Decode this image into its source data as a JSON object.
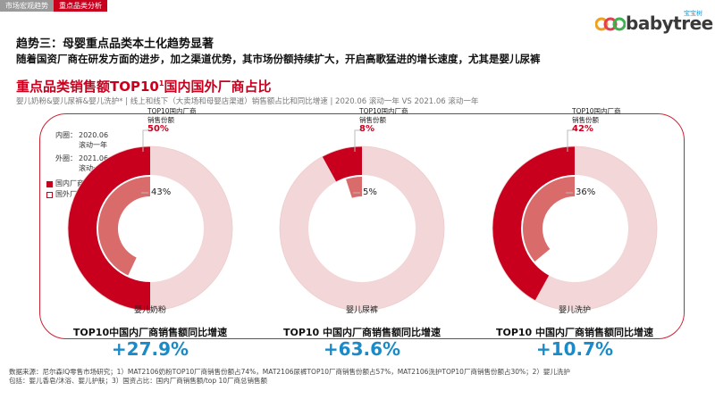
{
  "tabs": [
    {
      "label": "市场宏观趋势",
      "active": false
    },
    {
      "label": "重点品类分析",
      "active": true
    }
  ],
  "logo": {
    "text": "babytree",
    "small": "宝宝树"
  },
  "trend_title": "趋势三：母婴重点品类本土化趋势显著",
  "trend_desc": "随着国资厂商在研发方面的进步，加之渠道优势，其市场份额持续扩大，开启高歌猛进的增长速度，尤其是婴儿尿裤",
  "section_title": "重点品类销售额TOP10",
  "section_title_sup": "1",
  "section_title_rest": "国内国外厂商占比",
  "section_sub": "婴儿奶粉&婴儿尿裤&婴儿洗护* | 线上和线下（大卖场和母婴店渠道）销售额占比和同比增速 | 2020.06 滚动一年 VS 2021.06 滚动一年",
  "legend": {
    "inner_label": "内圈：",
    "inner_period": "2020.06",
    "inner_suffix": "滚动一年",
    "outer_label": "外圈：",
    "outer_period": "2021.06",
    "outer_suffix": "滚动一年",
    "domestic": "国内厂商",
    "foreign": "国外厂商"
  },
  "callout_label": "TOP10国内厂商\n销售份额",
  "chart_data": [
    {
      "type": "pie",
      "category": "婴儿奶粉",
      "inner_domestic_pct": 43,
      "outer_domestic_pct": 50,
      "inner_label": "43%",
      "outer_label": "50%",
      "growth_title": "TOP10中国内厂商销售额同比增速",
      "growth": "+27.9%"
    },
    {
      "type": "pie",
      "category": "婴儿尿裤",
      "inner_domestic_pct": 5,
      "outer_domestic_pct": 8,
      "inner_label": "5%",
      "outer_label": "8%",
      "growth_title": "TOP10 中国内厂商销售额同比增速",
      "growth": "+63.6%"
    },
    {
      "type": "pie",
      "category": "婴儿洗护",
      "inner_domestic_pct": 36,
      "outer_domestic_pct": 42,
      "inner_label": "36%",
      "outer_label": "42%",
      "growth_title": "TOP10 中国内厂商销售额同比增速",
      "growth": "+10.7%"
    }
  ],
  "colors": {
    "domestic": "#c8001e",
    "domestic_inner": "#d96b6b",
    "foreign": "#ffffff",
    "accent": "#1a8bc8"
  },
  "footnote_line1": "数据来源：尼尔森IQ零售市场研究；1）MAT2106奶粉TOP10厂商销售份额占74%，MAT2106尿裤TOP10厂商销售份额占57%，MAT2106洗护TOP10厂商销售份额占30%；2）婴儿洗护",
  "footnote_line2": "包括：婴儿香皂/沐浴、婴儿护肤；3）国资占比：国内厂商销售额/top 10厂商总销售额"
}
